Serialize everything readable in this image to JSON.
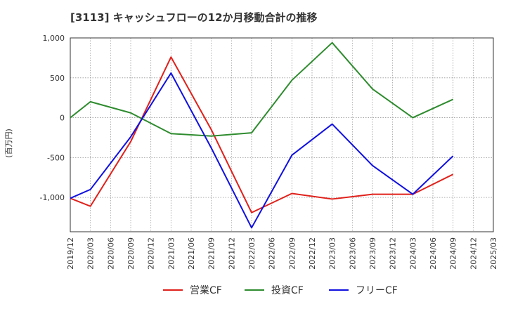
{
  "chart_data": {
    "type": "line",
    "title": "[3113]  キャッシュフローの12か月移動合計の推移",
    "ylabel": "(百万円)",
    "xlabel": "",
    "ylim": [
      -1430,
      1000
    ],
    "yticks": [
      1000,
      500,
      0,
      -500,
      -1000
    ],
    "ytick_labels": [
      "1,000",
      "500",
      "0",
      "-500",
      "-1,000"
    ],
    "categories": [
      "2019/12",
      "2020/03",
      "2020/06",
      "2020/09",
      "2020/12",
      "2021/03",
      "2021/06",
      "2021/09",
      "2021/12",
      "2022/03",
      "2022/06",
      "2022/09",
      "2022/12",
      "2023/03",
      "2023/06",
      "2023/09",
      "2023/12",
      "2024/03",
      "2024/06",
      "2024/09",
      "2024/12",
      "2025/03"
    ],
    "series": [
      {
        "name": "営業CF",
        "color": "#e0201a",
        "values": [
          -1010,
          -1110,
          null,
          -300,
          null,
          760,
          null,
          -150,
          null,
          -1190,
          null,
          -950,
          null,
          -1020,
          null,
          -960,
          null,
          -960,
          null,
          -710,
          null,
          null
        ]
      },
      {
        "name": "投資CF",
        "color": "#2e8b2e",
        "values": [
          0,
          200,
          null,
          60,
          null,
          -200,
          null,
          -230,
          null,
          -190,
          null,
          470,
          null,
          940,
          null,
          360,
          null,
          0,
          null,
          230,
          null,
          null
        ]
      },
      {
        "name": "フリーCF",
        "color": "#1010e0",
        "values": [
          -1010,
          -900,
          null,
          -240,
          null,
          560,
          null,
          -380,
          null,
          -1380,
          null,
          -470,
          null,
          -80,
          null,
          -600,
          null,
          -960,
          null,
          -480,
          null,
          null
        ]
      }
    ],
    "grid": true,
    "legend_position": "bottom-center"
  }
}
